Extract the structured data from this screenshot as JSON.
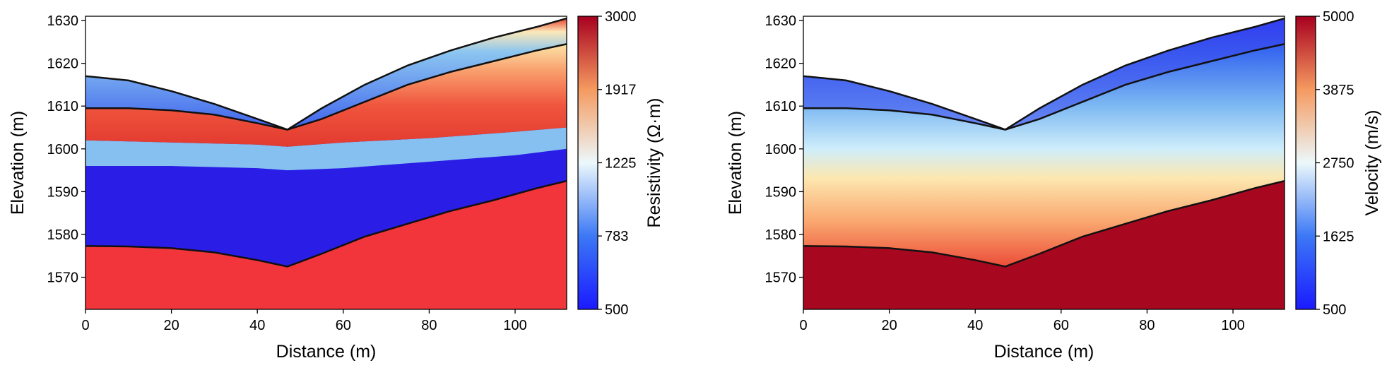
{
  "chart_data": [
    {
      "type": "heatmap",
      "xlabel": "Distance (m)",
      "ylabel": "Elevation (m)",
      "xlim": [
        0,
        112
      ],
      "ylim": [
        1562.5,
        1631
      ],
      "x_ticks": [
        0,
        20,
        40,
        60,
        80,
        100
      ],
      "y_ticks": [
        1570,
        1580,
        1590,
        1600,
        1610,
        1620,
        1630
      ],
      "colorbar": {
        "label": "Resistivity (Ω·m)",
        "scale": "log",
        "range": [
          500,
          3000
        ],
        "ticks": [
          500,
          783,
          1225,
          1917,
          3000
        ],
        "colormap": "blue-white-red"
      },
      "boundaries": [
        {
          "x": [
            0,
            10,
            20,
            30,
            40,
            47,
            55,
            65,
            75,
            85,
            95,
            105,
            112
          ],
          "y": [
            1617,
            1616,
            1613.5,
            1610.5,
            1607,
            1604.5,
            1609.5,
            1615,
            1619.5,
            1623,
            1626,
            1628.5,
            1630.5
          ]
        },
        {
          "x": [
            0,
            10,
            20,
            30,
            40,
            47,
            55,
            65,
            75,
            85,
            95,
            105,
            112
          ],
          "y": [
            1609.5,
            1609.5,
            1609,
            1608,
            1606,
            1604.5,
            1607,
            1611,
            1615,
            1618,
            1620.5,
            1623,
            1624.5
          ]
        },
        {
          "x": [
            0,
            10,
            20,
            30,
            40,
            47,
            55,
            65,
            75,
            85,
            95,
            105,
            112
          ],
          "y": [
            1577.3,
            1577.2,
            1576.8,
            1575.8,
            1574,
            1572.5,
            1575.5,
            1579.5,
            1582.5,
            1585.5,
            1588,
            1590.8,
            1592.5
          ]
        }
      ]
    },
    {
      "type": "heatmap",
      "xlabel": "Distance (m)",
      "ylabel": "Elevation (m)",
      "xlim": [
        0,
        112
      ],
      "ylim": [
        1562.5,
        1631
      ],
      "x_ticks": [
        0,
        20,
        40,
        60,
        80,
        100
      ],
      "y_ticks": [
        1570,
        1580,
        1590,
        1600,
        1610,
        1620,
        1630
      ],
      "colorbar": {
        "label": "Velocity (m/s)",
        "scale": "linear",
        "range": [
          500,
          5000
        ],
        "ticks": [
          500,
          1625,
          2750,
          3875,
          5000
        ],
        "colormap": "blue-white-red"
      },
      "boundaries": [
        {
          "x": [
            0,
            10,
            20,
            30,
            40,
            47,
            55,
            65,
            75,
            85,
            95,
            105,
            112
          ],
          "y": [
            1617,
            1616,
            1613.5,
            1610.5,
            1607,
            1604.5,
            1609.5,
            1615,
            1619.5,
            1623,
            1626,
            1628.5,
            1630.5
          ]
        },
        {
          "x": [
            0,
            10,
            20,
            30,
            40,
            47,
            55,
            65,
            75,
            85,
            95,
            105,
            112
          ],
          "y": [
            1609.5,
            1609.5,
            1609,
            1608,
            1606,
            1604.5,
            1607,
            1611,
            1615,
            1618,
            1620.5,
            1623,
            1624.5
          ]
        },
        {
          "x": [
            0,
            10,
            20,
            30,
            40,
            47,
            55,
            65,
            75,
            85,
            95,
            105,
            112
          ],
          "y": [
            1577.3,
            1577.2,
            1576.8,
            1575.8,
            1574,
            1572.5,
            1575.5,
            1579.5,
            1582.5,
            1585.5,
            1588,
            1590.8,
            1592.5
          ]
        }
      ]
    }
  ]
}
